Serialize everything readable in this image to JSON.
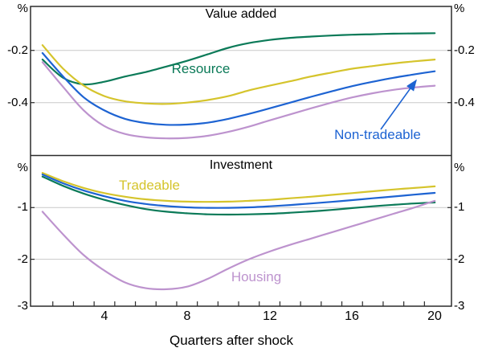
{
  "colors": {
    "resource_green": "#0b7a58",
    "tradeable_yellow": "#d5c42c",
    "nontradeable_blue": "#1d63d2",
    "housing_purple": "#bd93ce",
    "gridline": "#c9c9c9",
    "axis": "#2b2b2b",
    "text": "#000000",
    "background": "#ffffff"
  },
  "axes": {
    "unit_label": "%",
    "top_y_ticks": [
      "-0.2",
      "-0.4"
    ],
    "bottom_y_ticks": [
      "-1",
      "-2",
      "-3"
    ],
    "x_ticks": [
      "4",
      "8",
      "12",
      "16",
      "20"
    ],
    "x_title": "Quarters after shock"
  },
  "chart_data": [
    {
      "type": "line",
      "panel": "top",
      "title": "Value added",
      "unit": "%",
      "xlabel": "Quarters after shock",
      "x": [
        1,
        2,
        3,
        4,
        5,
        6,
        7,
        8,
        9,
        10,
        11,
        12,
        13,
        14,
        15,
        16,
        17,
        18,
        19,
        20
      ],
      "xtick_label_values": [
        4,
        8,
        12,
        16,
        20
      ],
      "ylim": [
        -0.6,
        0
      ],
      "ytick_values": [
        -0.2,
        -0.4
      ],
      "grid": true,
      "legend_position": "inline-labels",
      "series": [
        {
          "name": "Resource",
          "color": "#0b7a58",
          "values": [
            -0.235,
            -0.305,
            -0.33,
            -0.32,
            -0.3,
            -0.283,
            -0.262,
            -0.24,
            -0.215,
            -0.19,
            -0.172,
            -0.16,
            -0.152,
            -0.147,
            -0.143,
            -0.14,
            -0.138,
            -0.136,
            -0.135,
            -0.134
          ]
        },
        {
          "name": "Tradeable",
          "color": "#d5c42c",
          "values": [
            -0.18,
            -0.27,
            -0.335,
            -0.375,
            -0.395,
            -0.403,
            -0.405,
            -0.4,
            -0.39,
            -0.375,
            -0.353,
            -0.335,
            -0.318,
            -0.3,
            -0.285,
            -0.27,
            -0.26,
            -0.25,
            -0.242,
            -0.235
          ]
        },
        {
          "name": "Non-tradeable",
          "color": "#1d63d2",
          "values": [
            -0.21,
            -0.3,
            -0.38,
            -0.43,
            -0.462,
            -0.478,
            -0.485,
            -0.484,
            -0.477,
            -0.462,
            -0.443,
            -0.422,
            -0.4,
            -0.378,
            -0.357,
            -0.337,
            -0.32,
            -0.305,
            -0.292,
            -0.28
          ]
        },
        {
          "name": "Housing",
          "color": "#bd93ce",
          "values": [
            -0.245,
            -0.34,
            -0.43,
            -0.49,
            -0.52,
            -0.533,
            -0.537,
            -0.535,
            -0.527,
            -0.512,
            -0.492,
            -0.468,
            -0.445,
            -0.422,
            -0.4,
            -0.38,
            -0.364,
            -0.351,
            -0.342,
            -0.335
          ]
        }
      ]
    },
    {
      "type": "line",
      "panel": "bottom",
      "title": "Investment",
      "unit": "%",
      "xlabel": "Quarters after shock",
      "x": [
        1,
        2,
        3,
        4,
        5,
        6,
        7,
        8,
        9,
        10,
        11,
        12,
        13,
        14,
        15,
        16,
        17,
        18,
        19,
        20
      ],
      "xtick_label_values": [
        4,
        8,
        12,
        16,
        20
      ],
      "ylim": [
        -3,
        0
      ],
      "ytick_values": [
        -1,
        -2,
        -3
      ],
      "grid": true,
      "legend_position": "inline-labels",
      "series": [
        {
          "name": "Resource",
          "color": "#0b7a58",
          "values": [
            -0.4,
            -0.58,
            -0.73,
            -0.85,
            -0.95,
            -1.03,
            -1.08,
            -1.11,
            -1.13,
            -1.135,
            -1.13,
            -1.12,
            -1.1,
            -1.075,
            -1.045,
            -1.01,
            -0.975,
            -0.945,
            -0.92,
            -0.9
          ]
        },
        {
          "name": "Tradeable",
          "color": "#d5c42c",
          "values": [
            -0.33,
            -0.49,
            -0.62,
            -0.72,
            -0.79,
            -0.84,
            -0.87,
            -0.885,
            -0.89,
            -0.885,
            -0.87,
            -0.85,
            -0.82,
            -0.79,
            -0.755,
            -0.72,
            -0.685,
            -0.65,
            -0.62,
            -0.59
          ]
        },
        {
          "name": "Non-tradeable",
          "color": "#1d63d2",
          "values": [
            -0.36,
            -0.53,
            -0.67,
            -0.78,
            -0.87,
            -0.93,
            -0.97,
            -0.995,
            -1.005,
            -1.005,
            -0.995,
            -0.975,
            -0.95,
            -0.92,
            -0.89,
            -0.855,
            -0.82,
            -0.785,
            -0.75,
            -0.715
          ]
        },
        {
          "name": "Housing",
          "color": "#bd93ce",
          "values": [
            -1.08,
            -1.52,
            -1.92,
            -2.22,
            -2.45,
            -2.56,
            -2.58,
            -2.53,
            -2.38,
            -2.18,
            -2.0,
            -1.85,
            -1.72,
            -1.6,
            -1.48,
            -1.36,
            -1.24,
            -1.12,
            -1.0,
            -0.87
          ]
        }
      ]
    }
  ]
}
